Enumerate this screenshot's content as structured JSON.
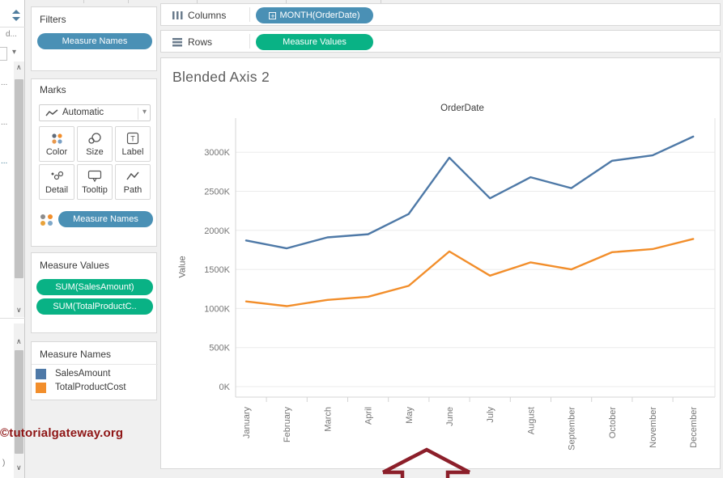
{
  "colors": {
    "pill_blue": "#4a90b5",
    "pill_green": "#09b285",
    "series_blue": "#4e79a7",
    "series_orange": "#f28e2b",
    "watermark_red": "#8e1515",
    "arrow_red": "#8c1f2a"
  },
  "left_pane": {
    "truncated_field": "d...",
    "ellipsis_fragments": [
      "...",
      "...",
      "..."
    ],
    "paren_fragment": ")"
  },
  "filters_card": {
    "title": "Filters",
    "pill": "Measure Names"
  },
  "marks_card": {
    "title": "Marks",
    "mark_type_label": "Automatic",
    "buttons": [
      {
        "label": "Color"
      },
      {
        "label": "Size"
      },
      {
        "label": "Label"
      },
      {
        "label": "Detail"
      },
      {
        "label": "Tooltip"
      },
      {
        "label": "Path"
      }
    ],
    "pill": "Measure Names"
  },
  "measure_values_card": {
    "title": "Measure Values",
    "pills": [
      "SUM(SalesAmount)",
      "SUM(TotalProductC.."
    ]
  },
  "legend_card": {
    "title": "Measure Names",
    "items": [
      {
        "label": "SalesAmount",
        "color": "#4e79a7"
      },
      {
        "label": "TotalProductCost",
        "color": "#f28e2b"
      }
    ]
  },
  "shelves": {
    "columns": {
      "label": "Columns",
      "pill": "MONTH(OrderDate)"
    },
    "rows": {
      "label": "Rows",
      "pill": "Measure Values"
    }
  },
  "worksheet": {
    "title": "Blended Axis 2"
  },
  "watermark": "©tutorialgateway.org",
  "chart_data": {
    "type": "line",
    "title": "OrderDate",
    "xlabel": "",
    "ylabel": "Value",
    "categories": [
      "January",
      "February",
      "March",
      "April",
      "May",
      "June",
      "July",
      "August",
      "September",
      "October",
      "November",
      "December"
    ],
    "series": [
      {
        "name": "SalesAmount",
        "color": "#4e79a7",
        "values": [
          1870000,
          1770000,
          1910000,
          1950000,
          2210000,
          2930000,
          2410000,
          2680000,
          2540000,
          2890000,
          2960000,
          3200000
        ]
      },
      {
        "name": "TotalProductCost",
        "color": "#f28e2b",
        "values": [
          1090000,
          1030000,
          1110000,
          1150000,
          1290000,
          1730000,
          1420000,
          1590000,
          1500000,
          1720000,
          1760000,
          1890000
        ]
      }
    ],
    "y_ticks": [
      "0K",
      "500K",
      "1000K",
      "1500K",
      "2000K",
      "2500K",
      "3000K"
    ],
    "ylim": [
      0,
      3000000
    ],
    "grid": true,
    "legend_position": "left-card"
  }
}
